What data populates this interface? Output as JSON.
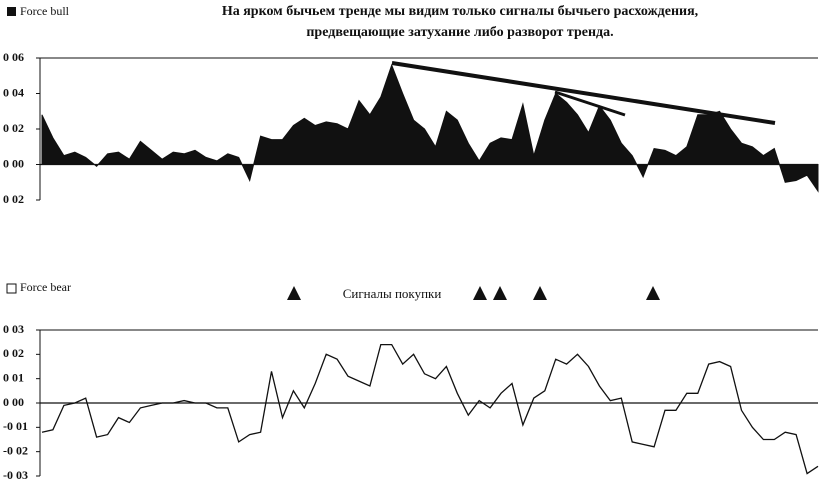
{
  "chart_data": [
    {
      "type": "area",
      "legend": "Force bull",
      "color": "#111111",
      "title": [
        "На ярком бычьем тренде мы видим только сигналы бычьего расхождения,",
        "предвещающие затухание либо разворот тренда."
      ],
      "ylim": [
        -0.02,
        0.06
      ],
      "yticks": [
        {
          "value": 0.06,
          "label": "0 06"
        },
        {
          "value": 0.04,
          "label": "0 04"
        },
        {
          "value": 0.02,
          "label": "0 02"
        },
        {
          "value": 0,
          "label": "0 00"
        },
        {
          "value": -0.02,
          "label": "0 02"
        }
      ],
      "values": [
        0.028,
        0.015,
        0.005,
        0.007,
        0.004,
        -0.001,
        0.006,
        0.007,
        0.003,
        0.013,
        0.008,
        0.003,
        0.007,
        0.006,
        0.008,
        0.004,
        0.002,
        0.006,
        0.004,
        -0.009,
        0.016,
        0.014,
        0.014,
        0.022,
        0.026,
        0.022,
        0.024,
        0.023,
        0.02,
        0.036,
        0.028,
        0.038,
        0.056,
        0.04,
        0.025,
        0.02,
        0.01,
        0.03,
        0.025,
        0.012,
        0.002,
        0.012,
        0.015,
        0.014,
        0.034,
        0.005,
        0.025,
        0.04,
        0.035,
        0.028,
        0.018,
        0.033,
        0.025,
        0.012,
        0.005,
        -0.007,
        0.009,
        0.008,
        0.005,
        0.01,
        0.028,
        0.028,
        0.03,
        0.02,
        0.012,
        0.01,
        0.005,
        0.009,
        -0.01,
        -0.009,
        -0.006,
        -0.015
      ]
    },
    {
      "type": "line",
      "legend": "Force bear",
      "color": "#111111",
      "annotation": "Сигналы покупки",
      "ylim": [
        -0.03,
        0.03
      ],
      "yticks": [
        {
          "value": 0.03,
          "label": "0 03"
        },
        {
          "value": 0.02,
          "label": "0 02"
        },
        {
          "value": 0.01,
          "label": "0 01"
        },
        {
          "value": 0,
          "label": "0 00"
        },
        {
          "value": -0.01,
          "label": "-0 01"
        },
        {
          "value": -0.02,
          "label": "-0 02"
        },
        {
          "value": -0.03,
          "label": "-0 03"
        }
      ],
      "values": [
        -0.012,
        -0.011,
        -0.001,
        0.0,
        0.002,
        -0.014,
        -0.013,
        -0.006,
        -0.008,
        -0.002,
        -0.001,
        0.0,
        0.0,
        0.001,
        0.0,
        0.0,
        -0.002,
        -0.002,
        -0.016,
        -0.013,
        -0.012,
        0.013,
        -0.006,
        0.005,
        -0.002,
        0.008,
        0.02,
        0.018,
        0.011,
        0.009,
        0.007,
        0.024,
        0.024,
        0.016,
        0.02,
        0.012,
        0.01,
        0.015,
        0.004,
        -0.005,
        0.001,
        -0.002,
        0.004,
        0.008,
        -0.009,
        0.002,
        0.005,
        0.018,
        0.016,
        0.02,
        0.015,
        0.007,
        0.001,
        0.002,
        -0.016,
        -0.017,
        -0.018,
        -0.003,
        -0.003,
        0.004,
        0.004,
        0.016,
        0.017,
        0.015,
        -0.003,
        -0.01,
        -0.015,
        -0.015,
        -0.012,
        -0.013,
        -0.029,
        -0.026
      ]
    }
  ]
}
